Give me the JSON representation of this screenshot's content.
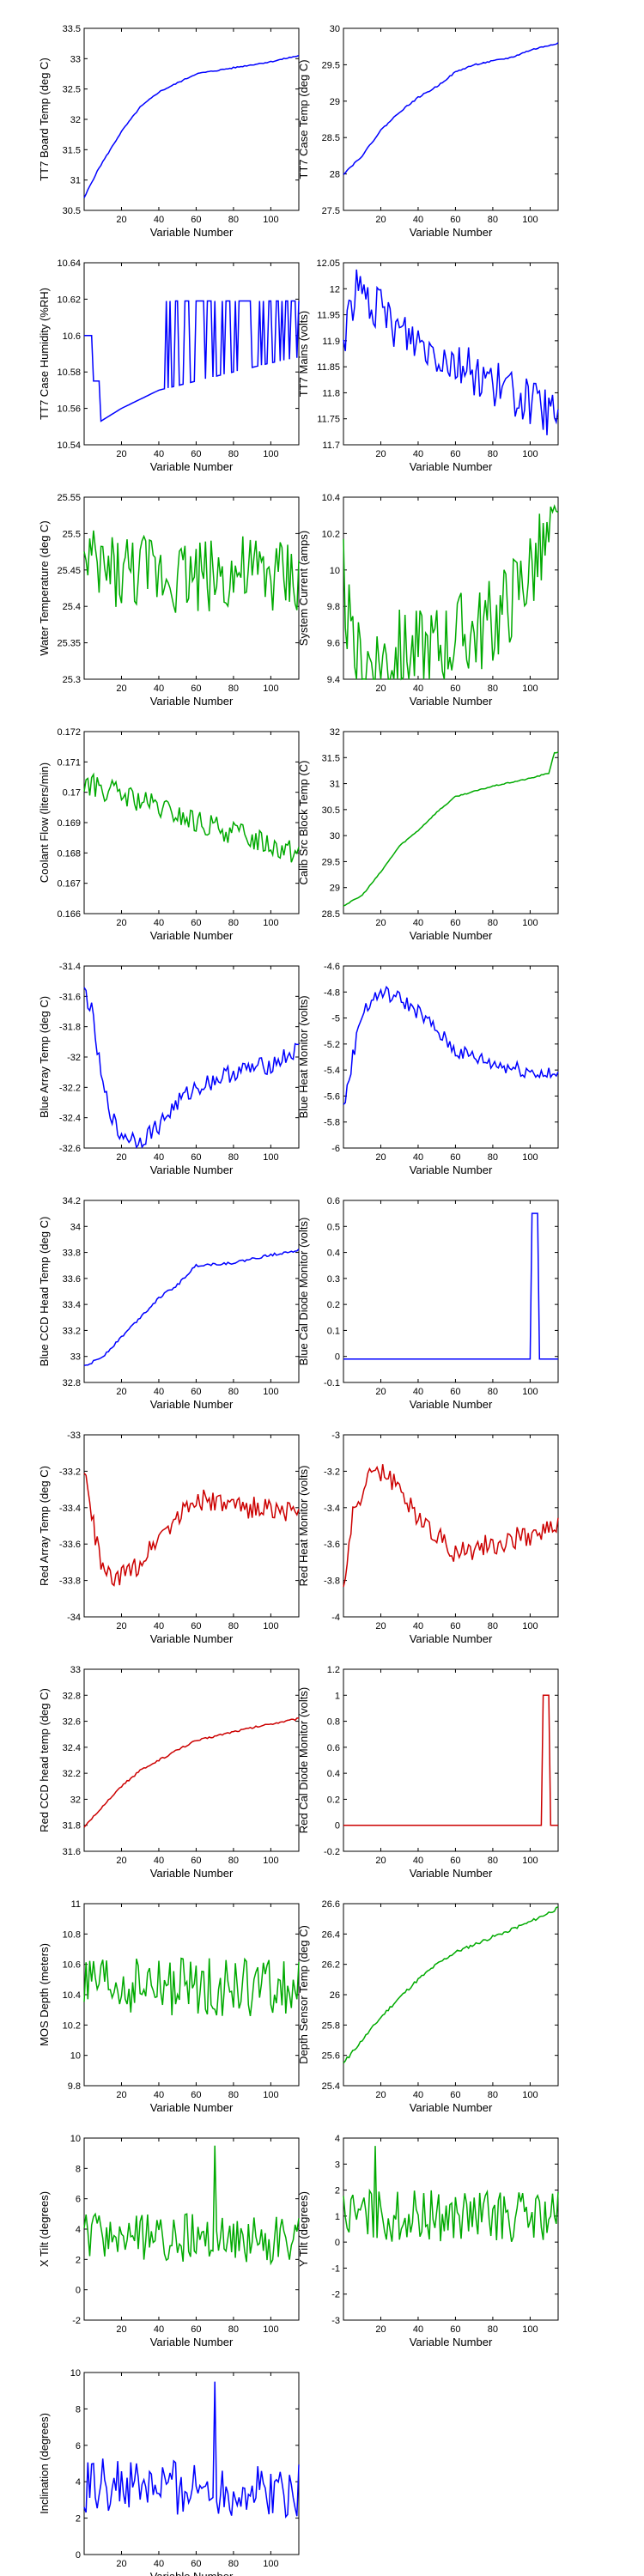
{
  "colors": {
    "blue": "#0000ff",
    "green": "#00aa00",
    "red": "#cc0000",
    "axis": "#000000"
  },
  "chart_data": [
    {
      "type": "line",
      "xlabel": "Variable Number",
      "ylabel": "TT7 Board Temp (deg C)",
      "xlim": [
        0,
        115
      ],
      "ylim": [
        30.5,
        33.5
      ],
      "yticks": [
        "30.5",
        "31",
        "31.5",
        "32",
        "32.5",
        "33",
        "33.5"
      ],
      "xticks": [
        "20",
        "40",
        "60",
        "80",
        "100"
      ],
      "color": "blue",
      "model": "smooth",
      "knots": [
        [
          0,
          30.7
        ],
        [
          3,
          30.9
        ],
        [
          8,
          31.2
        ],
        [
          14,
          31.5
        ],
        [
          20,
          31.8
        ],
        [
          30,
          32.2
        ],
        [
          40,
          32.45
        ],
        [
          50,
          32.6
        ],
        [
          60,
          32.75
        ],
        [
          80,
          32.85
        ],
        [
          100,
          32.95
        ],
        [
          115,
          33.05
        ]
      ],
      "noise": 0.02
    },
    {
      "type": "line",
      "xlabel": "Variable Number",
      "ylabel": "TT7 Case Temp (deg C)",
      "xlim": [
        0,
        115
      ],
      "ylim": [
        27.5,
        30
      ],
      "yticks": [
        "27.5",
        "28",
        "28.5",
        "29",
        "29.5",
        "30"
      ],
      "xticks": [
        "20",
        "40",
        "60",
        "80",
        "100"
      ],
      "color": "blue",
      "model": "smooth",
      "knots": [
        [
          0,
          28.0
        ],
        [
          10,
          28.25
        ],
        [
          20,
          28.6
        ],
        [
          30,
          28.85
        ],
        [
          40,
          29.05
        ],
        [
          50,
          29.2
        ],
        [
          60,
          29.4
        ],
        [
          70,
          29.5
        ],
        [
          80,
          29.55
        ],
        [
          90,
          29.6
        ],
        [
          100,
          29.7
        ],
        [
          115,
          29.8
        ]
      ],
      "noise": 0.02
    },
    {
      "type": "line",
      "xlabel": "Variable Number",
      "ylabel": "TT7 Case Humidity (%RH)",
      "xlim": [
        0,
        115
      ],
      "ylim": [
        10.54,
        10.64
      ],
      "yticks": [
        "10.54",
        "10.56",
        "10.58",
        "10.6",
        "10.62",
        "10.64"
      ],
      "xticks": [
        "20",
        "40",
        "60",
        "80",
        "100"
      ],
      "color": "blue",
      "model": "humid",
      "knots": [
        [
          0,
          10.6
        ],
        [
          4,
          10.6
        ],
        [
          5,
          10.575
        ],
        [
          8,
          10.575
        ],
        [
          9,
          10.553
        ],
        [
          20,
          10.56
        ],
        [
          40,
          10.57
        ],
        [
          60,
          10.575
        ],
        [
          80,
          10.58
        ],
        [
          100,
          10.585
        ],
        [
          115,
          10.588
        ]
      ],
      "spikes": [
        45,
        55,
        65,
        75,
        85,
        95,
        105
      ],
      "spike": 10.619
    },
    {
      "type": "line",
      "xlabel": "Variable Number",
      "ylabel": "TT7 Mains  (volts)",
      "xlim": [
        0,
        115
      ],
      "ylim": [
        11.7,
        12.05
      ],
      "yticks": [
        "11.7",
        "11.75",
        "11.8",
        "11.85",
        "11.9",
        "11.95",
        "12",
        "12.05"
      ],
      "xticks": [
        "20",
        "40",
        "60",
        "80",
        "100"
      ],
      "color": "blue",
      "model": "noisy",
      "knots": [
        [
          0,
          11.9
        ],
        [
          3,
          11.95
        ],
        [
          6,
          12.0
        ],
        [
          15,
          11.97
        ],
        [
          30,
          11.92
        ],
        [
          50,
          11.88
        ],
        [
          70,
          11.84
        ],
        [
          90,
          11.8
        ],
        [
          115,
          11.75
        ]
      ],
      "noise": 0.045
    },
    {
      "type": "line",
      "xlabel": "Variable Number",
      "ylabel": "Water Temperature (deg C)",
      "xlim": [
        0,
        115
      ],
      "ylim": [
        25.3,
        25.55
      ],
      "yticks": [
        "25.3",
        "25.35",
        "25.4",
        "25.45",
        "25.5",
        "25.55"
      ],
      "xticks": [
        "20",
        "40",
        "60",
        "80",
        "100"
      ],
      "color": "green",
      "model": "noisy",
      "knots": [
        [
          0,
          25.45
        ],
        [
          115,
          25.44
        ]
      ],
      "noise": 0.055
    },
    {
      "type": "line",
      "xlabel": "Variable Number",
      "ylabel": "System Current (amps)",
      "xlim": [
        0,
        115
      ],
      "ylim": [
        9.4,
        10.4
      ],
      "yticks": [
        "9.4",
        "9.6",
        "9.8",
        "10",
        "10.2",
        "10.4"
      ],
      "xticks": [
        "20",
        "40",
        "60",
        "80",
        "100"
      ],
      "color": "green",
      "model": "noisy",
      "knots": [
        [
          0,
          9.95
        ],
        [
          5,
          9.5
        ],
        [
          40,
          9.55
        ],
        [
          80,
          9.7
        ],
        [
          100,
          10.0
        ],
        [
          115,
          10.2
        ]
      ],
      "noise": 0.25
    },
    {
      "type": "line",
      "xlabel": "Variable Number",
      "ylabel": "Coolant Flow (liters/min)",
      "xlim": [
        0,
        115
      ],
      "ylim": [
        0.166,
        0.172
      ],
      "yticks": [
        "0.166",
        "0.167",
        "0.168",
        "0.169",
        "0.17",
        "0.171",
        "0.172"
      ],
      "xticks": [
        "20",
        "40",
        "60",
        "80",
        "100"
      ],
      "color": "green",
      "model": "noisy",
      "knots": [
        [
          0,
          0.1703
        ],
        [
          30,
          0.1697
        ],
        [
          60,
          0.169
        ],
        [
          90,
          0.1685
        ],
        [
          115,
          0.168
        ]
      ],
      "noise": 0.0004
    },
    {
      "type": "line",
      "xlabel": "Variable Number",
      "ylabel": "Calib Src Block Temp (C)",
      "xlim": [
        0,
        115
      ],
      "ylim": [
        28.5,
        32
      ],
      "yticks": [
        "28.5",
        "29",
        "29.5",
        "30",
        "30.5",
        "31",
        "31.5",
        "32"
      ],
      "xticks": [
        "20",
        "40",
        "60",
        "80",
        "100"
      ],
      "color": "green",
      "model": "smooth",
      "knots": [
        [
          0,
          28.65
        ],
        [
          10,
          28.85
        ],
        [
          20,
          29.3
        ],
        [
          30,
          29.8
        ],
        [
          40,
          30.1
        ],
        [
          50,
          30.45
        ],
        [
          60,
          30.75
        ],
        [
          80,
          30.95
        ],
        [
          100,
          31.1
        ],
        [
          110,
          31.2
        ],
        [
          113,
          31.6
        ],
        [
          115,
          31.6
        ]
      ],
      "noise": 0.02
    },
    {
      "type": "line",
      "xlabel": "Variable Number",
      "ylabel": "Blue Array Temp (deg C)",
      "xlim": [
        0,
        115
      ],
      "ylim": [
        -32.6,
        -31.4
      ],
      "yticks": [
        "-32.6",
        "-32.4",
        "-32.2",
        "-32",
        "-31.8",
        "-31.6",
        "-31.4"
      ],
      "xticks": [
        "20",
        "40",
        "60",
        "80",
        "100"
      ],
      "color": "blue",
      "model": "noisy",
      "knots": [
        [
          0,
          -31.55
        ],
        [
          4,
          -31.7
        ],
        [
          10,
          -32.2
        ],
        [
          18,
          -32.5
        ],
        [
          30,
          -32.55
        ],
        [
          40,
          -32.45
        ],
        [
          50,
          -32.3
        ],
        [
          60,
          -32.2
        ],
        [
          80,
          -32.1
        ],
        [
          100,
          -32.05
        ],
        [
          115,
          -31.95
        ]
      ],
      "noise": 0.06
    },
    {
      "type": "line",
      "xlabel": "Variable Number",
      "ylabel": "Blue Heat Monitor (volts)",
      "xlim": [
        0,
        115
      ],
      "ylim": [
        -6,
        -4.6
      ],
      "yticks": [
        "-6",
        "-5.8",
        "-5.6",
        "-5.4",
        "-5.2",
        "-5",
        "-4.8",
        "-4.6"
      ],
      "xticks": [
        "20",
        "40",
        "60",
        "80",
        "100"
      ],
      "color": "blue",
      "model": "noisy",
      "knots": [
        [
          0,
          -5.7
        ],
        [
          5,
          -5.3
        ],
        [
          10,
          -4.95
        ],
        [
          20,
          -4.8
        ],
        [
          30,
          -4.85
        ],
        [
          40,
          -4.95
        ],
        [
          50,
          -5.1
        ],
        [
          60,
          -5.25
        ],
        [
          80,
          -5.35
        ],
        [
          115,
          -5.45
        ]
      ],
      "noise": 0.06
    },
    {
      "type": "line",
      "xlabel": "Variable Number",
      "ylabel": "Blue CCD Head Temp (deg C)",
      "xlim": [
        0,
        115
      ],
      "ylim": [
        32.8,
        34.2
      ],
      "yticks": [
        "32.8",
        "33",
        "33.2",
        "33.4",
        "33.6",
        "33.8",
        "34",
        "34.2"
      ],
      "xticks": [
        "20",
        "40",
        "60",
        "80",
        "100"
      ],
      "color": "blue",
      "model": "smooth",
      "knots": [
        [
          0,
          32.92
        ],
        [
          10,
          33.0
        ],
        [
          20,
          33.15
        ],
        [
          30,
          33.3
        ],
        [
          40,
          33.45
        ],
        [
          50,
          33.55
        ],
        [
          60,
          33.7
        ],
        [
          80,
          33.72
        ],
        [
          100,
          33.78
        ],
        [
          115,
          33.82
        ]
      ],
      "noise": 0.02
    },
    {
      "type": "line",
      "xlabel": "Variable Number",
      "ylabel": "Blue Cal Diode Monitor (volts)",
      "xlim": [
        0,
        115
      ],
      "ylim": [
        -0.1,
        0.6
      ],
      "yticks": [
        "-0.1",
        "0",
        "0.1",
        "0.2",
        "0.3",
        "0.4",
        "0.5",
        "0.6"
      ],
      "xticks": [
        "20",
        "40",
        "60",
        "80",
        "100"
      ],
      "color": "blue",
      "model": "pulse",
      "knots": [
        [
          0,
          -0.01
        ],
        [
          115,
          -0.01
        ]
      ],
      "pulse": [
        101,
        104,
        0.55
      ]
    },
    {
      "type": "line",
      "xlabel": "Variable Number",
      "ylabel": "Red Array Temp (deg C)",
      "xlim": [
        0,
        115
      ],
      "ylim": [
        -34,
        -33
      ],
      "yticks": [
        "-34",
        "-33.8",
        "-33.6",
        "-33.4",
        "-33.2",
        "-33"
      ],
      "xticks": [
        "20",
        "40",
        "60",
        "80",
        "100"
      ],
      "color": "red",
      "model": "noisy",
      "knots": [
        [
          0,
          -33.2
        ],
        [
          5,
          -33.5
        ],
        [
          10,
          -33.75
        ],
        [
          18,
          -33.8
        ],
        [
          30,
          -33.7
        ],
        [
          40,
          -33.55
        ],
        [
          60,
          -33.35
        ],
        [
          80,
          -33.4
        ],
        [
          100,
          -33.4
        ],
        [
          115,
          -33.45
        ]
      ],
      "noise": 0.06
    },
    {
      "type": "line",
      "xlabel": "Variable Number",
      "ylabel": "Red Heat Monitor (volts)",
      "xlim": [
        0,
        115
      ],
      "ylim": [
        -4,
        -3
      ],
      "yticks": [
        "-4",
        "-3.8",
        "-3.6",
        "-3.4",
        "-3.2",
        "-3"
      ],
      "xticks": [
        "20",
        "40",
        "60",
        "80",
        "100"
      ],
      "color": "red",
      "model": "noisy",
      "knots": [
        [
          0,
          -3.85
        ],
        [
          5,
          -3.45
        ],
        [
          12,
          -3.25
        ],
        [
          20,
          -3.2
        ],
        [
          30,
          -3.3
        ],
        [
          40,
          -3.45
        ],
        [
          50,
          -3.55
        ],
        [
          60,
          -3.65
        ],
        [
          80,
          -3.6
        ],
        [
          100,
          -3.55
        ],
        [
          115,
          -3.5
        ]
      ],
      "noise": 0.06
    },
    {
      "type": "line",
      "xlabel": "Variable Number",
      "ylabel": "Red CCD head temp (deg C)",
      "xlim": [
        0,
        115
      ],
      "ylim": [
        31.6,
        33
      ],
      "yticks": [
        "31.6",
        "31.8",
        "32",
        "32.2",
        "32.4",
        "32.6",
        "32.8",
        "33"
      ],
      "xticks": [
        "20",
        "40",
        "60",
        "80",
        "100"
      ],
      "color": "red",
      "model": "smooth",
      "knots": [
        [
          0,
          31.78
        ],
        [
          10,
          31.95
        ],
        [
          20,
          32.1
        ],
        [
          30,
          32.22
        ],
        [
          40,
          32.3
        ],
        [
          50,
          32.38
        ],
        [
          60,
          32.45
        ],
        [
          80,
          32.52
        ],
        [
          100,
          32.58
        ],
        [
          115,
          32.62
        ]
      ],
      "noise": 0.015
    },
    {
      "type": "line",
      "xlabel": "Variable Number",
      "ylabel": "Red Cal Diode Monitor (volts)",
      "xlim": [
        0,
        115
      ],
      "ylim": [
        -0.2,
        1.2
      ],
      "yticks": [
        "-0.2",
        "0",
        "0.2",
        "0.4",
        "0.6",
        "0.8",
        "1",
        "1.2"
      ],
      "xticks": [
        "20",
        "40",
        "60",
        "80",
        "100"
      ],
      "color": "red",
      "model": "pulse",
      "knots": [
        [
          0,
          0.0
        ],
        [
          115,
          0.0
        ]
      ],
      "pulse": [
        107,
        110,
        1.0
      ]
    },
    {
      "type": "line",
      "xlabel": "Variable Number",
      "ylabel": "MOS Depth  (meters)",
      "xlim": [
        0,
        115
      ],
      "ylim": [
        9.8,
        11
      ],
      "yticks": [
        "9.8",
        "10",
        "10.2",
        "10.4",
        "10.6",
        "10.8",
        "11"
      ],
      "xticks": [
        "20",
        "40",
        "60",
        "80",
        "100"
      ],
      "color": "green",
      "model": "noisy",
      "knots": [
        [
          0,
          10.45
        ],
        [
          115,
          10.45
        ]
      ],
      "noise": 0.2
    },
    {
      "type": "line",
      "xlabel": "Variable Number",
      "ylabel": "Depth Sensor Temp (deg C)",
      "xlim": [
        0,
        115
      ],
      "ylim": [
        25.4,
        26.6
      ],
      "yticks": [
        "25.4",
        "25.6",
        "25.8",
        "26",
        "26.2",
        "26.4",
        "26.6"
      ],
      "xticks": [
        "20",
        "40",
        "60",
        "80",
        "100"
      ],
      "color": "green",
      "model": "smooth",
      "knots": [
        [
          0,
          25.55
        ],
        [
          10,
          25.7
        ],
        [
          20,
          25.85
        ],
        [
          30,
          25.98
        ],
        [
          40,
          26.1
        ],
        [
          50,
          26.2
        ],
        [
          60,
          26.28
        ],
        [
          80,
          26.38
        ],
        [
          100,
          26.48
        ],
        [
          115,
          26.57
        ]
      ],
      "noise": 0.02
    },
    {
      "type": "line",
      "xlabel": "Variable Number",
      "ylabel": "X Tilt  (degrees)",
      "xlim": [
        0,
        115
      ],
      "ylim": [
        -2,
        10
      ],
      "yticks": [
        "-2",
        "0",
        "2",
        "4",
        "6",
        "8",
        "10"
      ],
      "xticks": [
        "20",
        "40",
        "60",
        "80",
        "100"
      ],
      "color": "green",
      "model": "noisy",
      "knots": [
        [
          0,
          3.5
        ],
        [
          115,
          3.3
        ]
      ],
      "noise": 1.6,
      "peak": [
        70,
        9.5
      ]
    },
    {
      "type": "line",
      "xlabel": "Variable Number",
      "ylabel": "Y Tilt  (degrees)",
      "xlim": [
        0,
        115
      ],
      "ylim": [
        -3,
        4
      ],
      "yticks": [
        "-3",
        "-2",
        "-1",
        "0",
        "1",
        "2",
        "3",
        "4"
      ],
      "xticks": [
        "20",
        "40",
        "60",
        "80",
        "100"
      ],
      "color": "green",
      "model": "noisy",
      "knots": [
        [
          0,
          1.0
        ],
        [
          115,
          1.0
        ]
      ],
      "noise": 1.0,
      "peak": [
        17,
        3.7
      ]
    },
    {
      "type": "line",
      "xlabel": "Variable Number",
      "ylabel": "Inclination  (degrees)",
      "xlim": [
        0,
        115
      ],
      "ylim": [
        0,
        10
      ],
      "yticks": [
        "0",
        "2",
        "4",
        "6",
        "8",
        "10"
      ],
      "xticks": [
        "20",
        "40",
        "60",
        "80",
        "100"
      ],
      "color": "blue",
      "model": "noisy",
      "knots": [
        [
          0,
          3.8
        ],
        [
          115,
          3.5
        ]
      ],
      "noise": 1.5,
      "peak": [
        70,
        9.5
      ]
    }
  ]
}
